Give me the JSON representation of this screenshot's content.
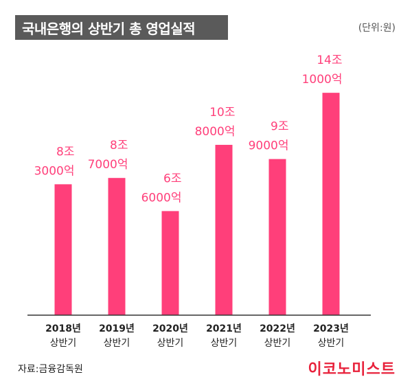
{
  "header": {
    "title": "국내은행의 상반기 총 영업실적",
    "unit": "(단위:원)"
  },
  "footer": {
    "source": "자료:금융감독원",
    "brand": "이코노미스트"
  },
  "colors": {
    "bar": "#ff3f7a",
    "label": "#ff3f7a",
    "axis": "#333333",
    "title_bg": "#5a5a5a"
  },
  "chart_data": {
    "type": "bar",
    "title": "국내은행의 상반기 총 영업실적",
    "xlabel": "",
    "ylabel": "",
    "unit": "원",
    "ylim": [
      0,
      15500000000000
    ],
    "grid": false,
    "categories": [
      [
        "2018년",
        "상반기"
      ],
      [
        "2019년",
        "상반기"
      ],
      [
        "2020년",
        "상반기"
      ],
      [
        "2021년",
        "상반기"
      ],
      [
        "2022년",
        "상반기"
      ],
      [
        "2023년",
        "상반기"
      ]
    ],
    "values": [
      8300000000000,
      8700000000000,
      6600000000000,
      10800000000000,
      9900000000000,
      14100000000000
    ],
    "data_labels": [
      [
        "8조",
        "3000억"
      ],
      [
        "8조",
        "7000억"
      ],
      [
        "6조",
        "6000억"
      ],
      [
        "10조",
        "8000억"
      ],
      [
        "9조",
        "9000억"
      ],
      [
        "14조",
        "1000억"
      ]
    ]
  }
}
